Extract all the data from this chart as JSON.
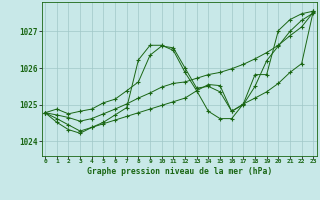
{
  "title": "Graphe pression niveau de la mer (hPa)",
  "ylim": [
    1023.6,
    1027.8
  ],
  "yticks": [
    1024,
    1025,
    1026,
    1027
  ],
  "bg_color": "#c8e8e8",
  "grid_color": "#a0c8c8",
  "line_color": "#1a6614",
  "series": [
    [
      1024.78,
      1024.88,
      1024.75,
      1024.82,
      1024.88,
      1025.05,
      1025.15,
      1025.38,
      1025.62,
      1026.35,
      1026.6,
      1026.55,
      1026.0,
      1025.45,
      1025.5,
      1025.35,
      1024.82,
      1025.0,
      1025.5,
      1026.2,
      1026.6,
      1027.0,
      1027.3,
      1027.5
    ],
    [
      1024.78,
      1024.72,
      1024.65,
      1024.55,
      1024.62,
      1024.75,
      1024.88,
      1025.02,
      1025.18,
      1025.32,
      1025.48,
      1025.58,
      1025.62,
      1025.72,
      1025.82,
      1025.88,
      1025.98,
      1026.1,
      1026.25,
      1026.42,
      1026.62,
      1026.88,
      1027.12,
      1027.52
    ],
    [
      1024.78,
      1024.52,
      1024.32,
      1024.22,
      1024.38,
      1024.52,
      1024.72,
      1024.92,
      1026.22,
      1026.62,
      1026.62,
      1026.48,
      1025.88,
      1025.38,
      1024.82,
      1024.62,
      1024.62,
      1025.02,
      1025.82,
      1025.82,
      1027.02,
      1027.32,
      1027.48,
      1027.55
    ],
    [
      1024.78,
      1024.62,
      1024.45,
      1024.28,
      1024.38,
      1024.48,
      1024.58,
      1024.68,
      1024.78,
      1024.88,
      1024.98,
      1025.08,
      1025.18,
      1025.38,
      1025.55,
      1025.52,
      1024.82,
      1025.02,
      1025.18,
      1025.35,
      1025.58,
      1025.88,
      1026.12,
      1027.55
    ]
  ]
}
